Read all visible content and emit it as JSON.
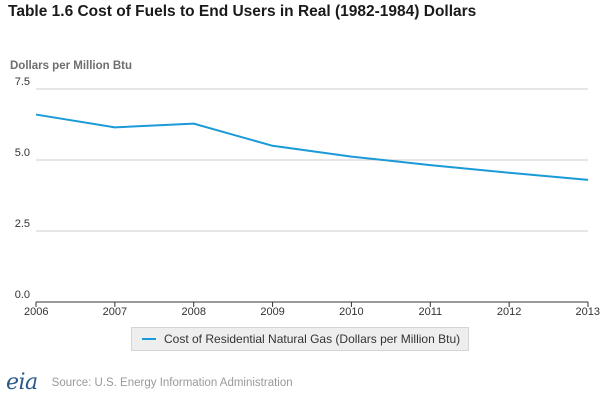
{
  "chart_data": {
    "type": "line",
    "title": "Table 1.6 Cost of Fuels to End Users in Real (1982-1984) Dollars",
    "ylabel": "Dollars per Million Btu",
    "xlabel": "",
    "categories": [
      "2006",
      "2007",
      "2008",
      "2009",
      "2010",
      "2011",
      "2012",
      "2013"
    ],
    "series": [
      {
        "name": "Cost of Residential Natural Gas (Dollars per Million Btu)",
        "color": "#1a9ad6",
        "values": [
          6.6,
          6.15,
          6.28,
          5.5,
          5.12,
          4.82,
          4.55,
          4.3
        ]
      }
    ],
    "ylim": [
      0,
      7.5
    ],
    "yticks": [
      "0.0",
      "2.5",
      "5.0",
      "7.5"
    ],
    "grid": true,
    "legend_position": "bottom-center"
  },
  "footer": {
    "logo": "eia",
    "source": "Source: U.S. Energy Information Administration"
  }
}
